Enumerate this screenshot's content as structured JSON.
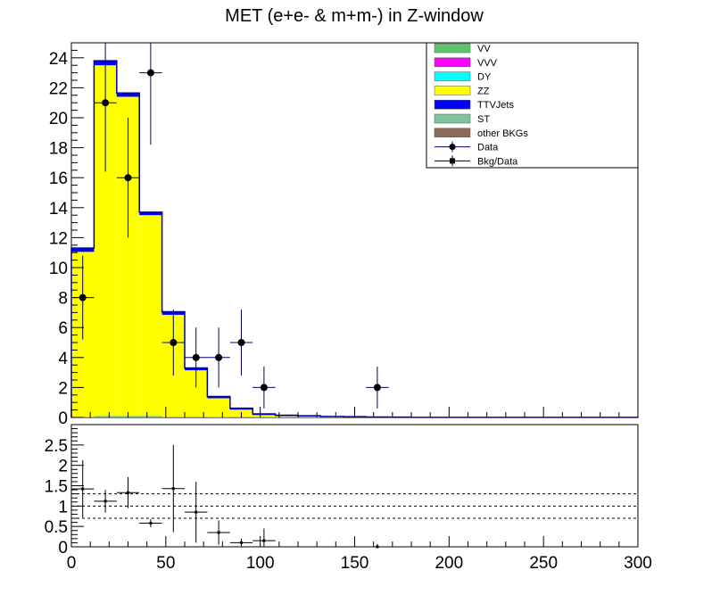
{
  "chart_data": [
    {
      "type": "bar",
      "title": "MET (e+e- & m+m-) in Z-window",
      "xlabel": "",
      "ylabel": "",
      "xlim": [
        0,
        300
      ],
      "ylim": [
        0,
        25
      ],
      "x_ticks": [
        0,
        50,
        100,
        150,
        200,
        250,
        300
      ],
      "y_ticks": [
        0,
        2,
        4,
        6,
        8,
        10,
        12,
        14,
        16,
        18,
        20,
        22,
        24
      ],
      "bin_edges": [
        0,
        12,
        24,
        36,
        48,
        60,
        72,
        84,
        96,
        108,
        120,
        132,
        144,
        156,
        168,
        180,
        192,
        204,
        216,
        228,
        240,
        252,
        264,
        276,
        288,
        300
      ],
      "series": [
        {
          "name": "VV",
          "color": "#5ec46e",
          "values": [
            0.05,
            0.1,
            0.1,
            0.1,
            0.05,
            0.05,
            0.03,
            0.02,
            0.01,
            0.01,
            0.01,
            0,
            0,
            0,
            0,
            0,
            0,
            0,
            0,
            0,
            0,
            0,
            0,
            0,
            0
          ]
        },
        {
          "name": "VVV",
          "color": "#ff00ff",
          "values": [
            0,
            0,
            0,
            0,
            0,
            0,
            0,
            0,
            0,
            0,
            0,
            0,
            0,
            0,
            0,
            0,
            0,
            0,
            0,
            0,
            0,
            0,
            0,
            0,
            0
          ]
        },
        {
          "name": "DY",
          "color": "#00ffff",
          "values": [
            0,
            0,
            0,
            0,
            0,
            0,
            0,
            0,
            0,
            0,
            0,
            0,
            0,
            0,
            0,
            0,
            0,
            0,
            0,
            0,
            0,
            0,
            0,
            0,
            0
          ]
        },
        {
          "name": "ZZ",
          "color": "#ffff00",
          "values": [
            11.0,
            23.4,
            21.3,
            13.4,
            6.8,
            3.1,
            1.25,
            0.5,
            0.15,
            0.08,
            0.05,
            0.03,
            0.02,
            0.01,
            0.01,
            0,
            0,
            0,
            0,
            0,
            0,
            0,
            0,
            0,
            0
          ]
        },
        {
          "name": "TTVJets",
          "color": "#0000ff",
          "values": [
            0.25,
            0.3,
            0.25,
            0.2,
            0.2,
            0.15,
            0.12,
            0.1,
            0.08,
            0.06,
            0.05,
            0.04,
            0.03,
            0.02,
            0.01,
            0.01,
            0.01,
            0.01,
            0.01,
            0.01,
            0.01,
            0.01,
            0.01,
            0.01,
            0.01
          ]
        },
        {
          "name": "ST",
          "color": "#7fc49e",
          "values": [
            0,
            0,
            0,
            0,
            0,
            0,
            0,
            0,
            0,
            0,
            0,
            0,
            0,
            0,
            0,
            0,
            0,
            0,
            0,
            0,
            0,
            0,
            0,
            0,
            0
          ]
        },
        {
          "name": "other BKGs",
          "color": "#8b6a5a",
          "values": [
            0,
            0,
            0,
            0,
            0,
            0,
            0,
            0,
            0,
            0,
            0,
            0,
            0,
            0,
            0,
            0,
            0,
            0,
            0,
            0,
            0,
            0,
            0,
            0,
            0
          ]
        }
      ],
      "data_points": {
        "name": "Data",
        "x": [
          6,
          18,
          30,
          42,
          54,
          66,
          78,
          90,
          102,
          162
        ],
        "y": [
          8,
          21,
          16,
          23,
          5,
          4,
          4,
          5,
          2,
          2
        ],
        "yerr": [
          2.8,
          4.6,
          4.0,
          4.8,
          2.2,
          2.0,
          2.0,
          2.2,
          1.4,
          1.4
        ]
      },
      "legend_extra": [
        {
          "name": "Bkg/Data",
          "marker": "square"
        }
      ],
      "legend_position": "top-right"
    },
    {
      "type": "scatter",
      "title": "",
      "xlabel": "",
      "ylabel": "",
      "xlim": [
        0,
        300
      ],
      "ylim": [
        0,
        3
      ],
      "x_ticks": [
        0,
        50,
        100,
        150,
        200,
        250,
        300
      ],
      "x_tick_labels": [
        "0",
        "50",
        "100",
        "150",
        "200",
        "250",
        "300"
      ],
      "y_ticks": [
        0,
        0.5,
        1,
        1.5,
        2,
        2.5
      ],
      "y_tick_labels": [
        "0",
        "0.5",
        "1",
        "1.5",
        "2",
        "2.5"
      ],
      "reference_lines": [
        0.7,
        1.0,
        1.3
      ],
      "series": [
        {
          "x": [
            6,
            18,
            30,
            42,
            54,
            66,
            78,
            90,
            102,
            162
          ],
          "y": [
            1.42,
            1.12,
            1.33,
            0.58,
            1.43,
            0.85,
            0.35,
            0.1,
            0.15,
            0.0
          ],
          "yerr": [
            0.7,
            0.28,
            0.38,
            0.1,
            1.07,
            0.75,
            0.3,
            0.1,
            0.3,
            0.07
          ],
          "xerr": 6
        }
      ]
    }
  ]
}
